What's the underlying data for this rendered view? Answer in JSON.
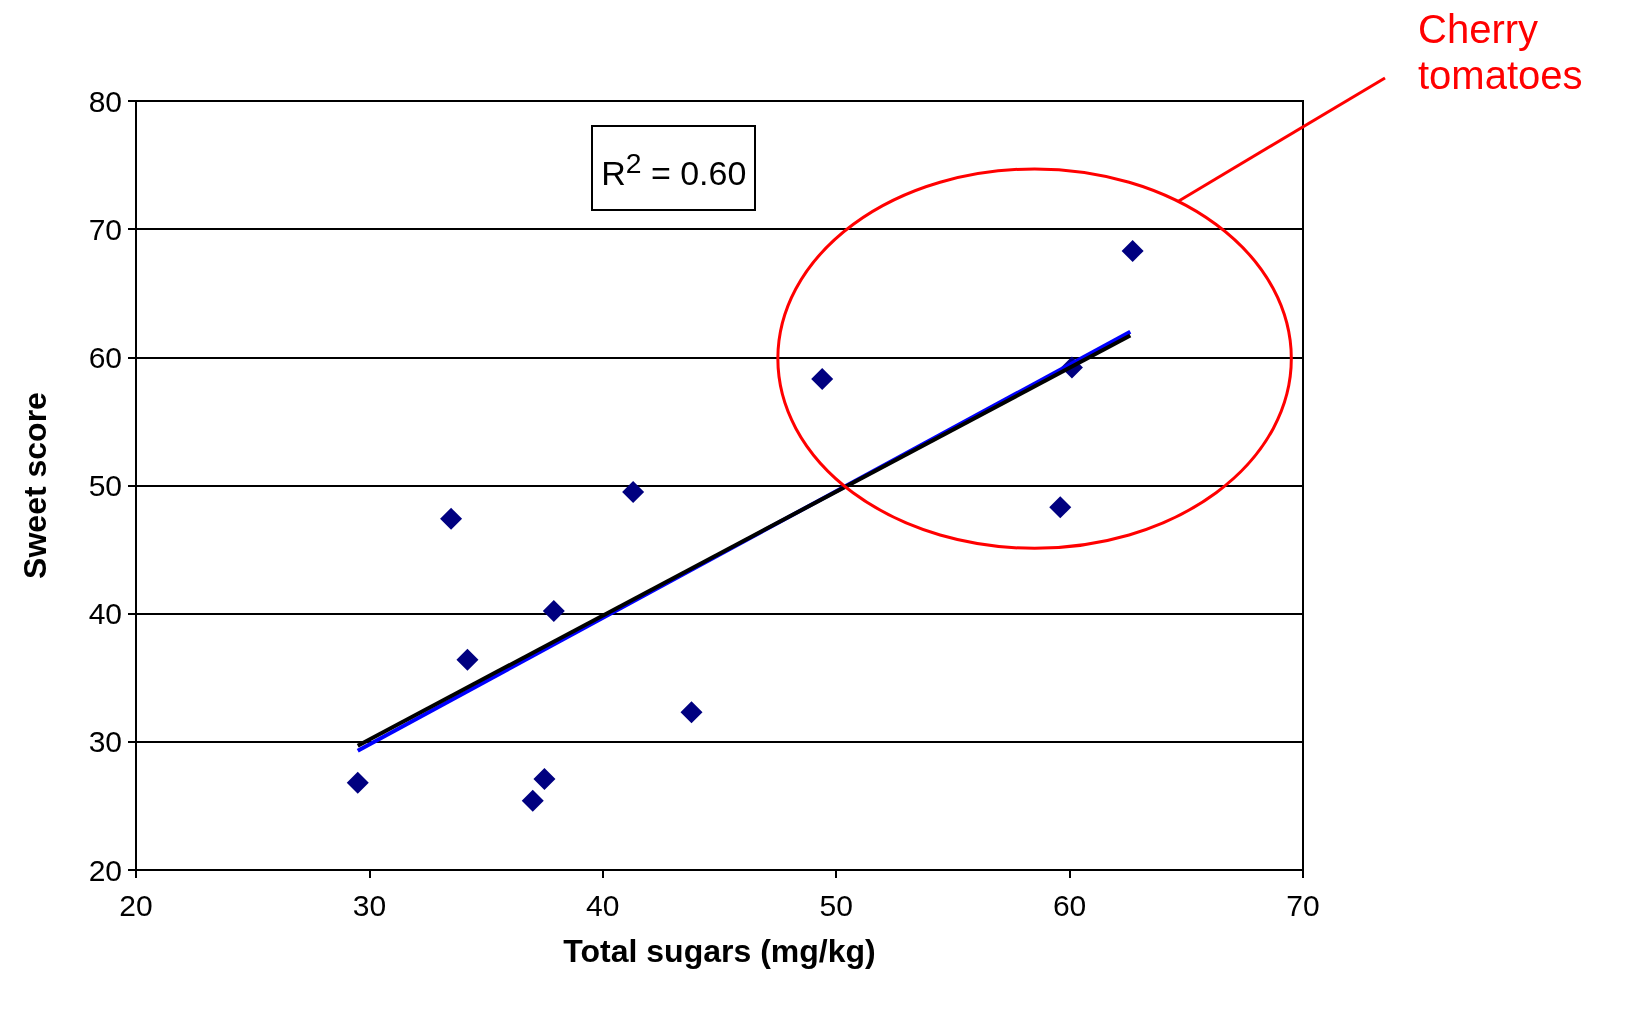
{
  "chart_data": {
    "type": "scatter",
    "xlabel": "Total sugars (mg/kg)",
    "ylabel": "Sweet score",
    "xlim": [
      20,
      70
    ],
    "xticks": [
      20,
      30,
      40,
      50,
      60,
      70
    ],
    "ylim": [
      20,
      80
    ],
    "yticks": [
      20,
      30,
      40,
      50,
      60,
      70,
      80
    ],
    "grid": "y",
    "series": [
      {
        "color": "#000080",
        "marker": "diamond",
        "x": [
          29.5,
          33.5,
          34.2,
          37.0,
          37.5,
          37.9,
          41.3,
          43.8,
          49.4,
          59.6,
          60.1,
          62.7
        ],
        "values": [
          26.8,
          47.4,
          36.4,
          25.4,
          27.1,
          40.2,
          49.5,
          32.3,
          58.3,
          48.3,
          59.2,
          68.3
        ]
      },
      {
        "type": "line",
        "color": "#0000ff",
        "marker": "none",
        "x": [
          29.5,
          62.6
        ],
        "values": [
          29.3,
          62.0
        ]
      },
      {
        "type": "line",
        "color": "#000000",
        "marker": "none",
        "x": [
          29.5,
          62.6
        ],
        "values": [
          29.7,
          61.7
        ]
      }
    ],
    "annotations": [
      "R$^{2}$ = 0.60",
      "Cherry tomatoes"
    ]
  }
}
